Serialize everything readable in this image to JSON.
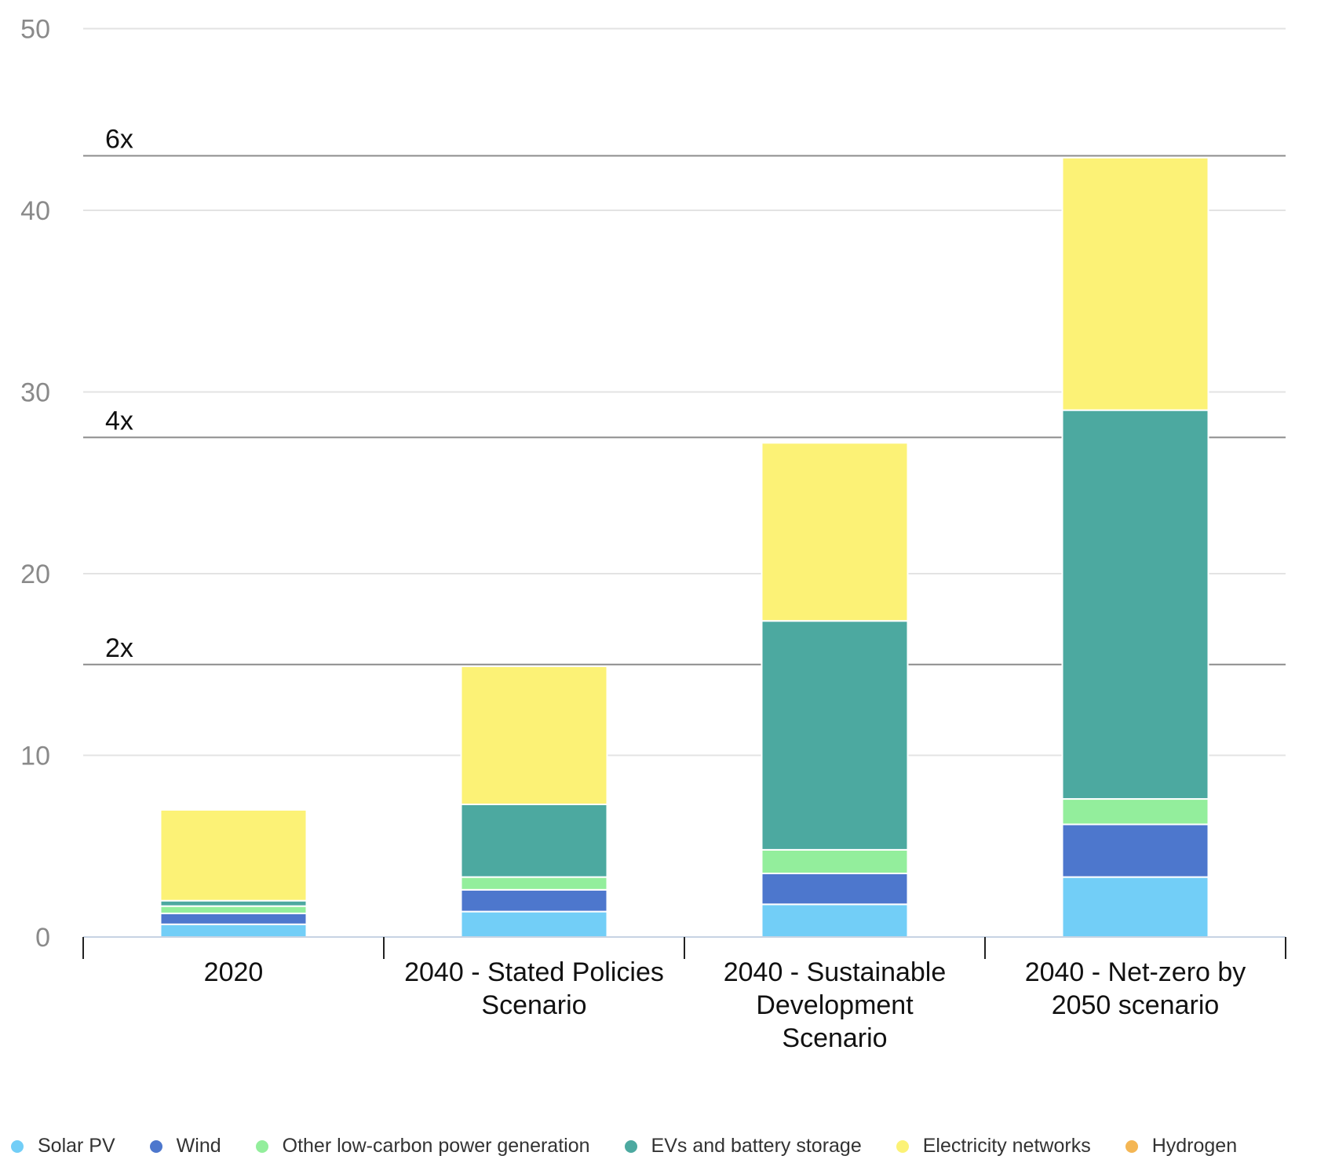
{
  "chart_data": {
    "type": "bar",
    "stacked": true,
    "categories": [
      [
        "2020"
      ],
      [
        "2040 - Stated Policies",
        "Scenario"
      ],
      [
        "2040 - Sustainable",
        "Development",
        "Scenario"
      ],
      [
        "2040 - Net-zero by",
        "2050 scenario"
      ]
    ],
    "series": [
      {
        "name": "Solar PV",
        "color": "#72CEF7",
        "values": [
          0.7,
          1.4,
          1.8,
          3.3
        ]
      },
      {
        "name": "Wind",
        "color": "#4D77CD",
        "values": [
          0.6,
          1.2,
          1.7,
          2.9
        ]
      },
      {
        "name": "Other low-carbon power generation",
        "color": "#93EE9C",
        "values": [
          0.4,
          0.7,
          1.3,
          1.4
        ]
      },
      {
        "name": "EVs and battery storage",
        "color": "#4CA9A0",
        "values": [
          0.3,
          4.0,
          12.6,
          21.4
        ]
      },
      {
        "name": "Electricity networks",
        "color": "#FCF276",
        "values": [
          5.0,
          7.6,
          9.8,
          13.9
        ]
      },
      {
        "name": "Hydrogen",
        "color": "#F4B654",
        "values": [
          0,
          0,
          0,
          0
        ]
      }
    ],
    "ylim": [
      0,
      50
    ],
    "yticks": [
      0,
      10,
      20,
      30,
      40,
      50
    ],
    "grid": true,
    "reference_lines": [
      {
        "label": "2x",
        "value": 15
      },
      {
        "label": "4x",
        "value": 27.5
      },
      {
        "label": "6x",
        "value": 43
      }
    ],
    "legend_position": "bottom"
  }
}
